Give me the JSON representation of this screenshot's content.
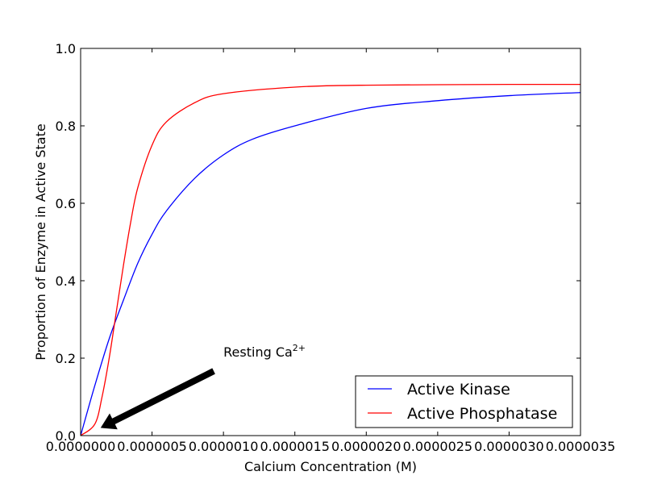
{
  "chart_data": {
    "type": "line",
    "title": "",
    "xlabel": "Calcium Concentration (M)",
    "ylabel": "Proportion of Enzyme in Active State",
    "xlim": [
      0,
      3.5e-06
    ],
    "ylim": [
      0,
      1.0
    ],
    "grid": false,
    "legend_position": "lower-right",
    "x_ticks": [
      0,
      5e-07,
      1e-06,
      1.5e-06,
      2e-06,
      2.5e-06,
      3e-06,
      3.5e-06
    ],
    "x_tick_labels": [
      "0.0000000",
      "0.0000005",
      "0.0000010",
      "0.0000015",
      "0.0000020",
      "0.0000025",
      "0.0000030",
      "0.0000035"
    ],
    "y_ticks": [
      0,
      0.2,
      0.4,
      0.6,
      0.8,
      1.0
    ],
    "y_tick_labels": [
      "0.0",
      "0.2",
      "0.4",
      "0.6",
      "0.8",
      "1.0"
    ],
    "annotation": {
      "text_main": "Resting Ca",
      "text_sup": "2+",
      "point": [
        1.4e-07,
        0.02
      ],
      "text_at": [
        1e-06,
        0.2
      ]
    },
    "series": [
      {
        "name": "Active Kinase",
        "color": "#0000ff",
        "x": [
          0,
          1e-07,
          2e-07,
          3e-07,
          4e-07,
          5e-07,
          6e-07,
          8e-07,
          1e-06,
          1.2e-06,
          1.5e-06,
          2e-06,
          2.5e-06,
          3e-06,
          3.5e-06
        ],
        "y": [
          0,
          0.13,
          0.25,
          0.35,
          0.445,
          0.52,
          0.58,
          0.665,
          0.725,
          0.765,
          0.8,
          0.845,
          0.865,
          0.878,
          0.886
        ]
      },
      {
        "name": "Active Phosphatase",
        "color": "#ff0000",
        "x": [
          0,
          1e-07,
          1.5e-07,
          2e-07,
          2.5e-07,
          3e-07,
          3.5e-07,
          4e-07,
          5e-07,
          6e-07,
          8e-07,
          1e-06,
          1.5e-06,
          2e-06,
          3e-06,
          3.5e-06
        ],
        "y": [
          0,
          0.03,
          0.1,
          0.2,
          0.32,
          0.44,
          0.55,
          0.64,
          0.75,
          0.81,
          0.86,
          0.883,
          0.9,
          0.905,
          0.907,
          0.907
        ]
      }
    ]
  }
}
